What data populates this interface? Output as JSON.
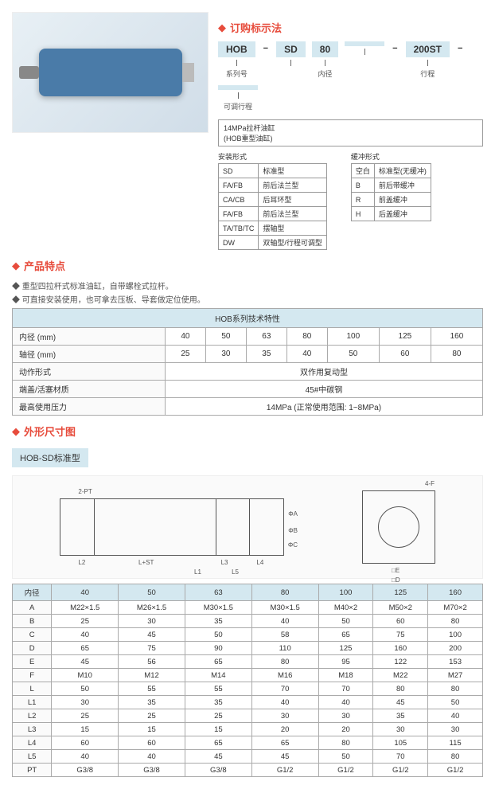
{
  "sections": {
    "ordering": "订购标示法",
    "features": "产品特点",
    "dimensions": "外形尺寸图"
  },
  "order": {
    "codes": [
      "HOB",
      "−",
      "SD",
      "80",
      "",
      "−",
      "200ST",
      "−",
      ""
    ],
    "labels": [
      "系列号",
      "",
      "",
      "内径",
      "",
      "",
      "行程",
      "",
      "可调行程"
    ],
    "series_desc1": "14MPa拉杆油缸",
    "series_desc2": "(HOB重型油缸)",
    "install_title": "安装形式",
    "buffer_title": "缓冲形式",
    "install_rows": [
      [
        "SD",
        "标准型"
      ],
      [
        "FA/FB",
        "前后法兰型"
      ],
      [
        "CA/CB",
        "后耳环型"
      ],
      [
        "FA/FB",
        "前后法兰型"
      ],
      [
        "TA/TB/TC",
        "摆轴型"
      ],
      [
        "DW",
        "双轴型/行程可调型"
      ]
    ],
    "buffer_rows": [
      [
        "空白",
        "标准型(无缓冲)"
      ],
      [
        "B",
        "前后带缓冲"
      ],
      [
        "R",
        "前盖缓冲"
      ],
      [
        "H",
        "后盖缓冲"
      ]
    ]
  },
  "features": [
    "◆ 重型四拉杆式标准油缸，自带螺栓式拉杆。",
    "◆ 可直接安装使用，也可拿去压板、导套做定位使用。"
  ],
  "spec_table": {
    "title": "HOB系列技术特性",
    "headers": [
      "40",
      "50",
      "63",
      "80",
      "100",
      "125",
      "160"
    ],
    "rows": [
      {
        "label": "内径 (mm)",
        "vals": [
          "40",
          "50",
          "63",
          "80",
          "100",
          "125",
          "160"
        ]
      },
      {
        "label": "轴径 (mm)",
        "vals": [
          "25",
          "30",
          "35",
          "40",
          "50",
          "60",
          "80"
        ]
      }
    ],
    "span_rows": [
      {
        "label": "动作形式",
        "val": "双作用复动型"
      },
      {
        "label": "端盖/活塞材质",
        "val": "45#中碳钢"
      },
      {
        "label": "最高使用压力",
        "val": "14MPa (正常使用范围: 1~8MPa)"
      }
    ]
  },
  "subtype": "HOB-SD标准型",
  "dim_table": {
    "headers": [
      "内径",
      "40",
      "50",
      "63",
      "80",
      "100",
      "125",
      "160"
    ],
    "rows": [
      [
        "A",
        "M22×1.5",
        "M26×1.5",
        "M30×1.5",
        "M30×1.5",
        "M40×2",
        "M50×2",
        "M70×2"
      ],
      [
        "B",
        "25",
        "30",
        "35",
        "40",
        "50",
        "60",
        "80"
      ],
      [
        "C",
        "40",
        "45",
        "50",
        "58",
        "65",
        "75",
        "100"
      ],
      [
        "D",
        "65",
        "75",
        "90",
        "110",
        "125",
        "160",
        "200"
      ],
      [
        "E",
        "45",
        "56",
        "65",
        "80",
        "95",
        "122",
        "153"
      ],
      [
        "F",
        "M10",
        "M12",
        "M14",
        "M16",
        "M18",
        "M22",
        "M27"
      ],
      [
        "L",
        "50",
        "55",
        "55",
        "70",
        "70",
        "80",
        "80"
      ],
      [
        "L1",
        "30",
        "35",
        "35",
        "40",
        "40",
        "45",
        "50"
      ],
      [
        "L2",
        "25",
        "25",
        "25",
        "30",
        "30",
        "35",
        "40"
      ],
      [
        "L3",
        "15",
        "15",
        "15",
        "20",
        "20",
        "30",
        "30"
      ],
      [
        "L4",
        "60",
        "60",
        "65",
        "65",
        "80",
        "105",
        "115"
      ],
      [
        "L5",
        "40",
        "40",
        "45",
        "45",
        "50",
        "70",
        "80"
      ],
      [
        "PT",
        "G3/8",
        "G3/8",
        "G3/8",
        "G1/2",
        "G1/2",
        "G1/2",
        "G1/2"
      ]
    ]
  },
  "colors": {
    "accent": "#e74c3c",
    "header_bg": "#d4e8f0"
  }
}
